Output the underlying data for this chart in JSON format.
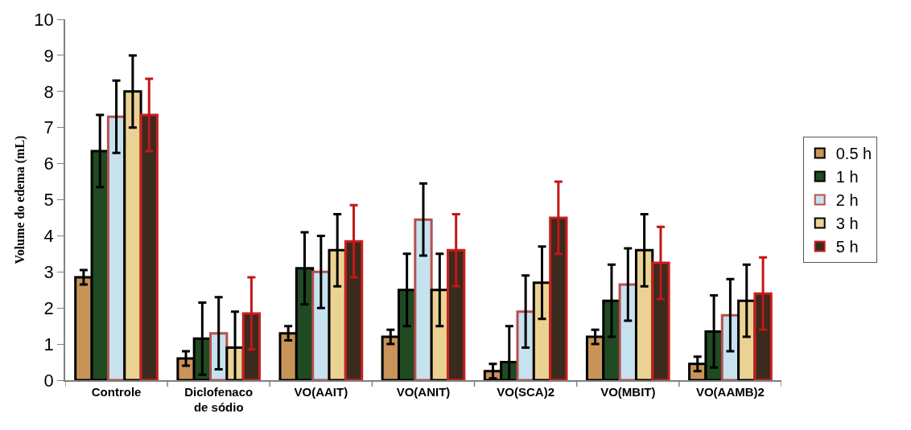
{
  "chart_data": {
    "type": "bar",
    "ylabel": "Volume do edema (mL)",
    "categories": [
      "Controle",
      "Diclofenaco de sódio",
      "VO(AAIT)",
      "VO(ANIT)",
      "VO(SCA)2",
      "VO(MBIT)",
      "VO(AAMB)2"
    ],
    "series": [
      {
        "name": "0.5 h",
        "color": "#c8945a",
        "values": [
          2.85,
          0.6,
          1.3,
          1.2,
          0.25,
          1.2,
          0.45
        ],
        "errors": [
          0.2,
          0.2,
          0.2,
          0.2,
          0.2,
          0.2,
          0.2
        ]
      },
      {
        "name": "1 h",
        "color": "#1f4a22",
        "values": [
          6.35,
          1.15,
          3.1,
          2.5,
          0.5,
          2.2,
          1.35
        ],
        "errors": [
          1,
          1,
          1,
          1,
          1,
          1,
          1
        ]
      },
      {
        "name": "2 h",
        "color": "#c6e2ee",
        "values": [
          7.3,
          1.3,
          3.0,
          4.45,
          1.9,
          2.65,
          1.8
        ],
        "errors": [
          1,
          1,
          1,
          1,
          1,
          1,
          1
        ]
      },
      {
        "name": "3 h",
        "color": "#ead292",
        "values": [
          8.0,
          0.9,
          3.6,
          2.5,
          2.7,
          3.6,
          2.2
        ],
        "errors": [
          1,
          1,
          1,
          1,
          1,
          1,
          1
        ]
      },
      {
        "name": "5 h",
        "color": "#3b2a1e",
        "values": [
          7.35,
          1.85,
          3.85,
          3.6,
          4.5,
          3.25,
          2.4
        ],
        "errors": [
          1,
          1,
          1,
          1,
          1,
          1,
          1
        ]
      }
    ],
    "ylim": [
      0,
      10
    ],
    "yticks": [
      0,
      1,
      2,
      3,
      4,
      5,
      6,
      7,
      8,
      9,
      10
    ],
    "grid": false,
    "legend": "right"
  }
}
